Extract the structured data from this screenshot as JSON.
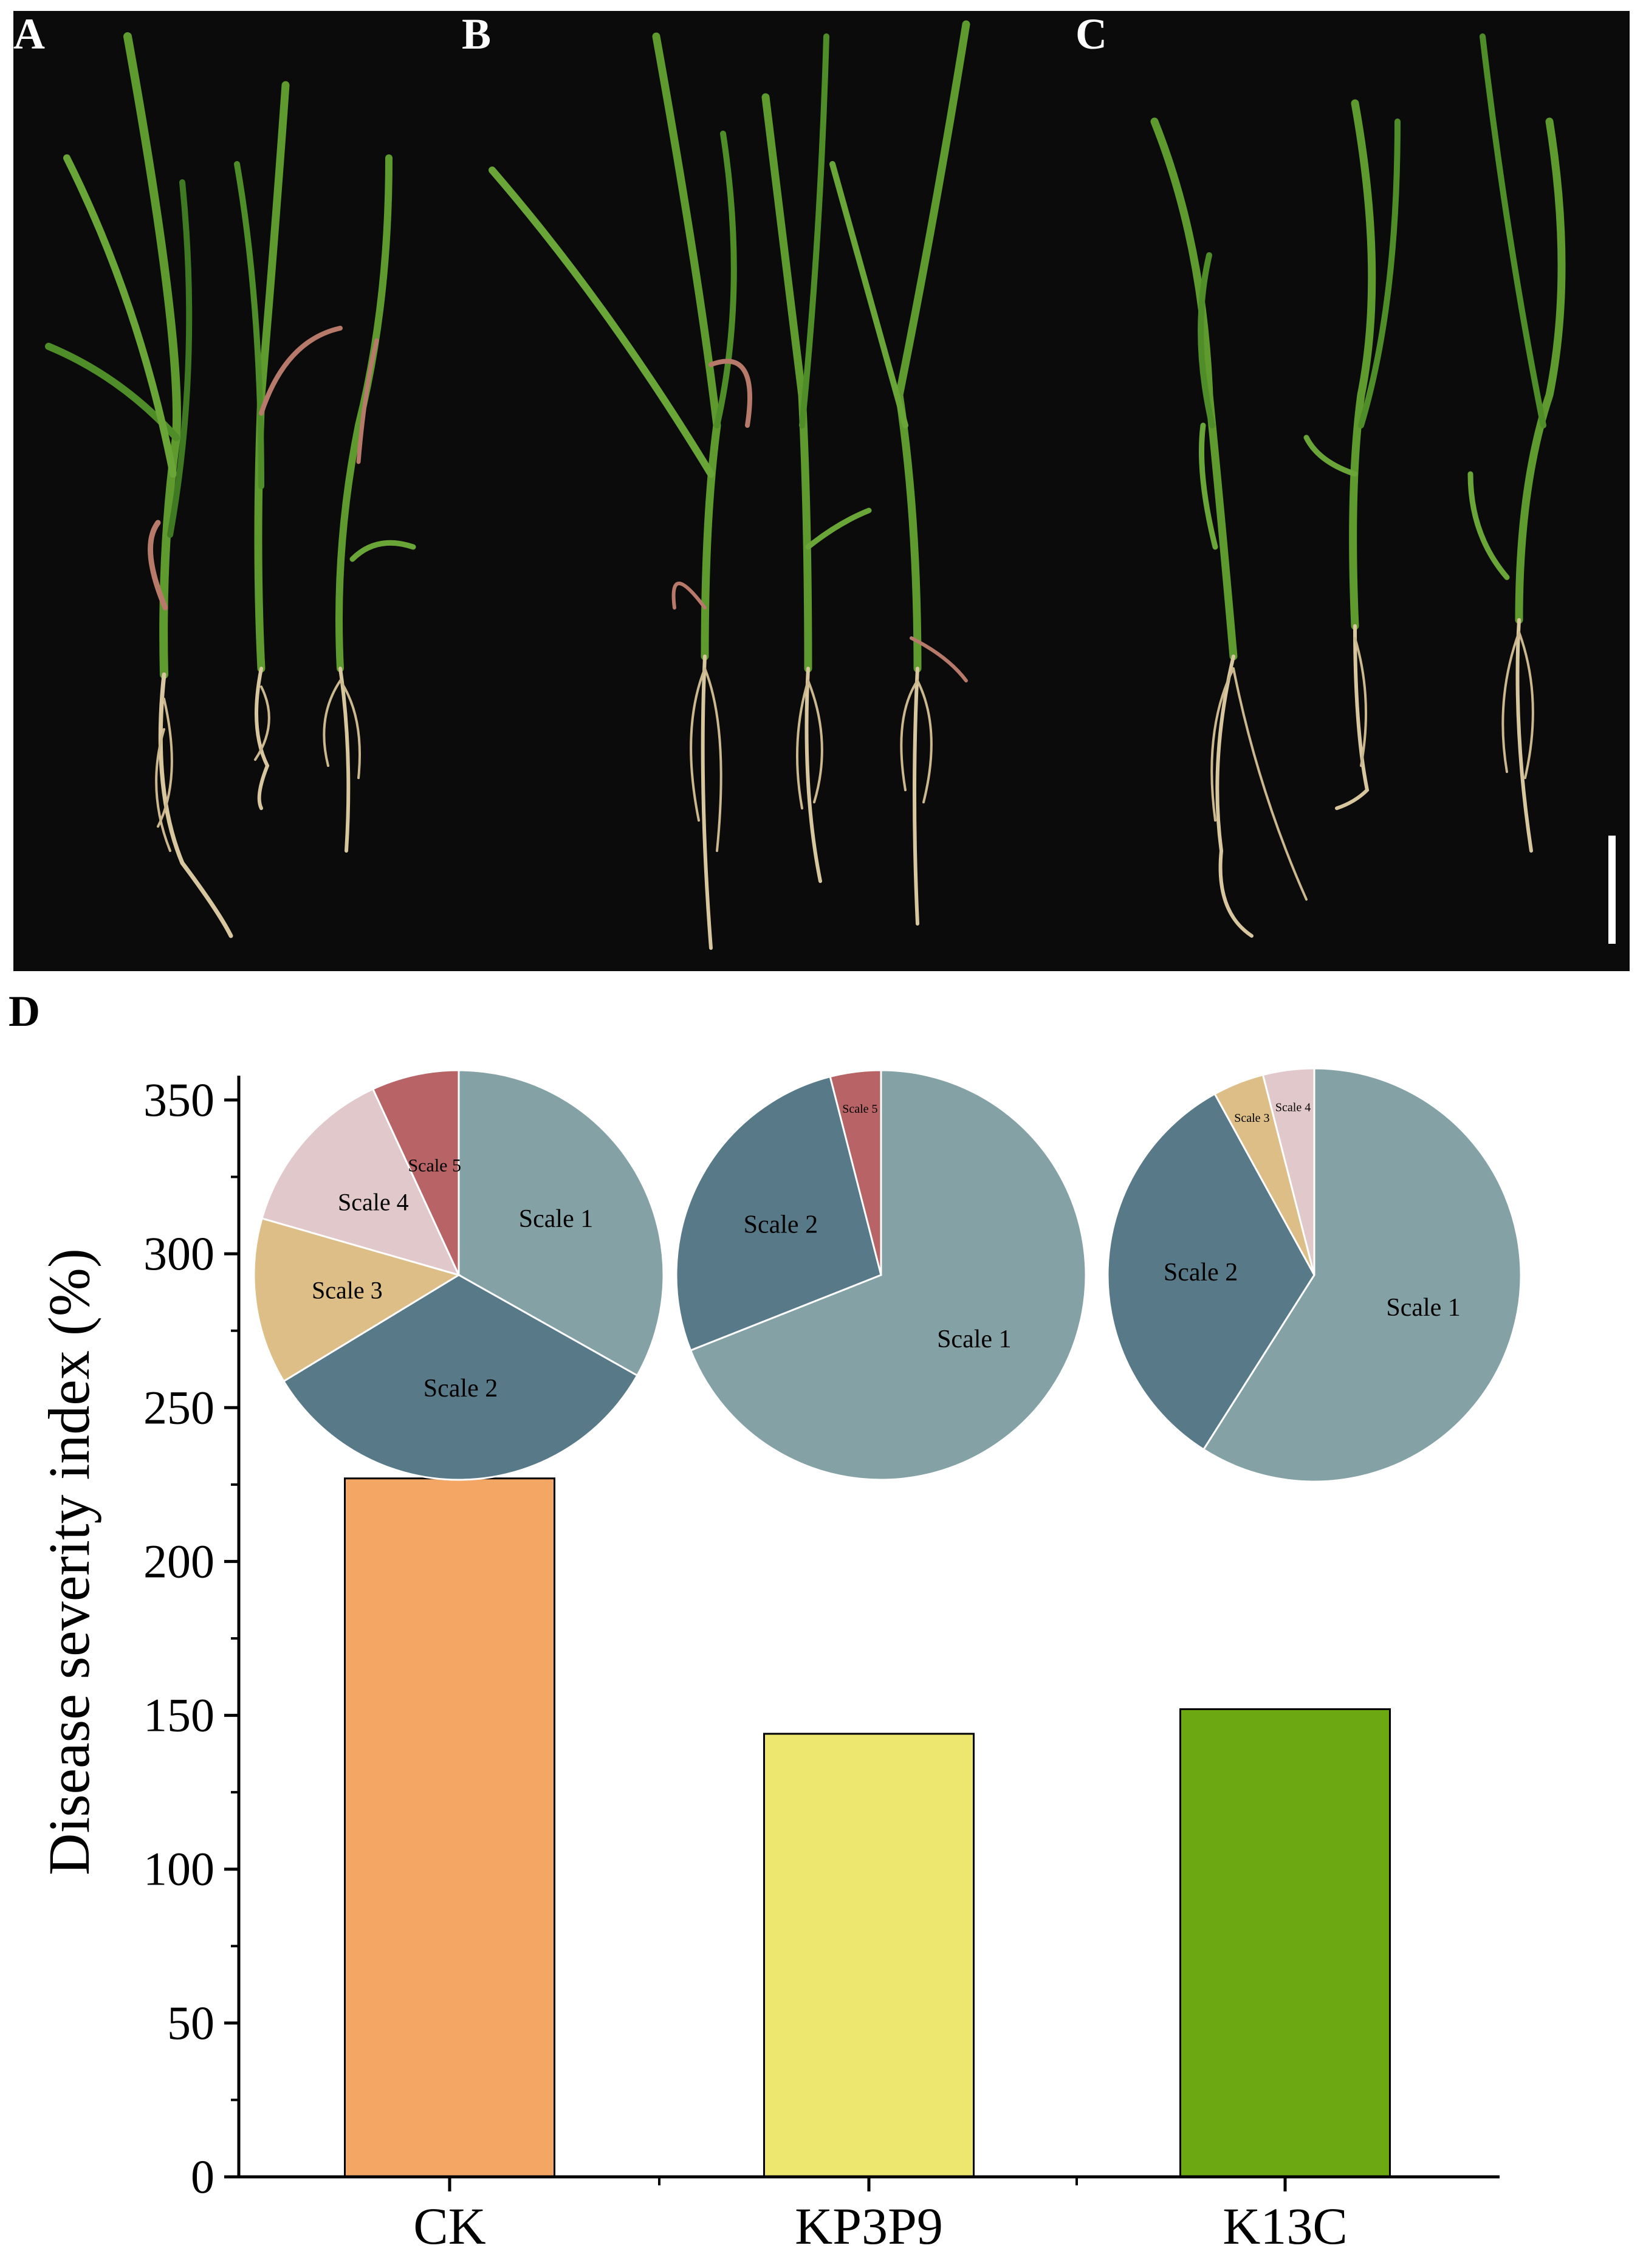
{
  "panels": [
    {
      "label": "A"
    },
    {
      "label": "B"
    },
    {
      "label": "C"
    },
    {
      "label": "D"
    }
  ],
  "colors": {
    "photo_bg": "#0b0b0b",
    "leaf_green": "#5e9a2e",
    "leaf_dark": "#3f7a22",
    "root_tan": "#d8c79e",
    "scale_bar": "#ffffff",
    "pie_scale1": "#84a2a6",
    "pie_scale2": "#587a88",
    "pie_scale3": "#dcbe86",
    "pie_scale4": "#e1c8cb",
    "pie_scale5": "#b86466"
  },
  "chart_data": [
    {
      "type": "bar",
      "ylabel": "Disease severity index (%)",
      "categories": [
        "CK",
        "KP3P9",
        "K13C"
      ],
      "values": [
        227,
        144,
        152
      ],
      "bar_colors": [
        "#f4a665",
        "#ede76f",
        "#6ca812"
      ],
      "ylim": [
        0,
        350
      ],
      "yticks": [
        "0",
        "50",
        "100",
        "150",
        "200",
        "250",
        "300",
        "350"
      ],
      "grid": false
    },
    {
      "type": "pie",
      "group": "CK",
      "labels": [
        "Scale 1",
        "Scale 2",
        "Scale 3",
        "Scale 4",
        "Scale 5"
      ],
      "values": [
        31.8,
        31.8,
        12.6,
        13.1,
        6.6
      ]
    },
    {
      "type": "pie",
      "group": "KP3P9",
      "labels": [
        "Scale 1",
        "Scale 2",
        "Scale 5"
      ],
      "values": [
        69.0,
        27.0,
        4.0
      ]
    },
    {
      "type": "pie",
      "group": "K13C",
      "labels": [
        "Scale 1",
        "Scale 2",
        "Scale 3",
        "Scale 4"
      ],
      "values": [
        59.0,
        33.0,
        4.0,
        4.0
      ]
    }
  ]
}
